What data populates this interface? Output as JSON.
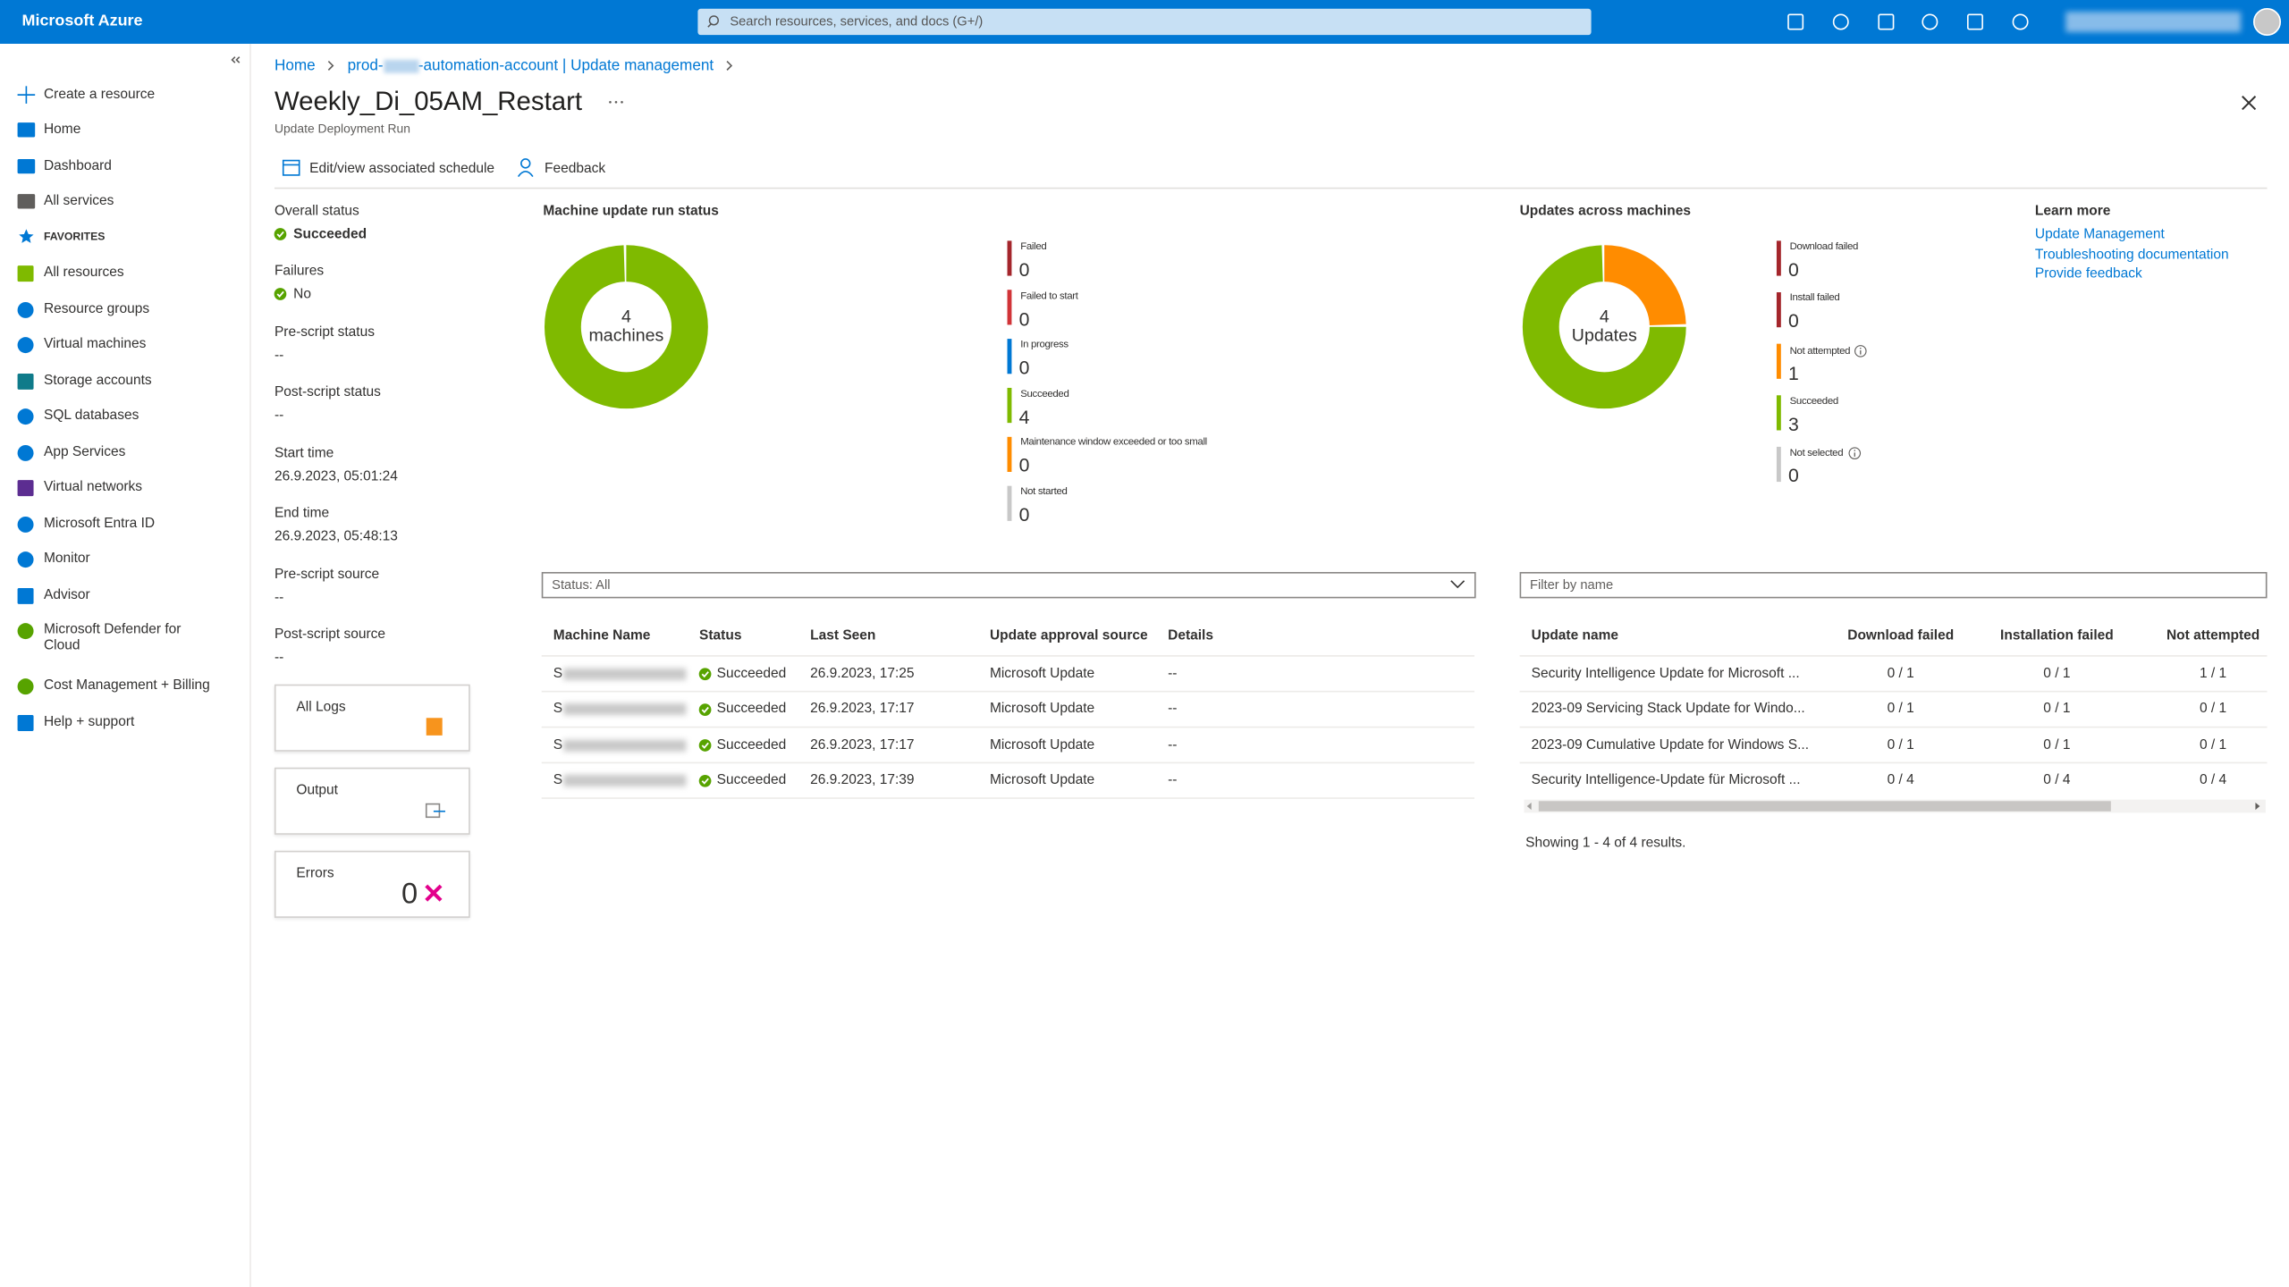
{
  "topbar": {
    "brand": "Microsoft Azure",
    "search": "Search resources, services, and docs (G+/)"
  },
  "sidebar": {
    "items": [
      "Create a resource",
      "Home",
      "Dashboard",
      "All services"
    ],
    "favorites_label": "FAVORITES",
    "favorites": [
      "All resources",
      "Resource groups",
      "Virtual machines",
      "Storage accounts",
      "SQL databases",
      "App Services",
      "Virtual networks",
      "Microsoft Entra ID",
      "Monitor",
      "Advisor",
      "Microsoft Defender for Cloud",
      "Cost Management + Billing",
      "Help + support"
    ]
  },
  "breadcrumb": [
    "Home",
    "prod-",
    "-automation-account | Update management"
  ],
  "header": {
    "title": "Weekly_Di_05AM_Restart",
    "subtitle": "Update Deployment Run"
  },
  "toolbar": [
    "Edit/view associated schedule",
    "Feedback"
  ],
  "details": [
    {
      "label": "Overall status",
      "value": "Succeeded"
    },
    {
      "label": "Failures",
      "value": "No"
    },
    {
      "label": "Pre-script status",
      "value": "--"
    },
    {
      "label": "Post-script status",
      "value": "--"
    },
    {
      "label": "Start time",
      "value": "26.9.2023, 05:01:24"
    },
    {
      "label": "End time",
      "value": "26.9.2023, 05:48:13"
    },
    {
      "label": "Pre-script source",
      "value": "--"
    },
    {
      "label": "Post-script source",
      "value": "--"
    }
  ],
  "tiles": [
    {
      "label": "All Logs"
    },
    {
      "label": "Output"
    },
    {
      "label": "Errors",
      "value": 0
    }
  ],
  "machine_status": {
    "title": "Machine update run status",
    "total": 4,
    "unit": "machines",
    "legend": [
      {
        "name": "Failed",
        "value": 0,
        "color": "#a4262c"
      },
      {
        "name": "Failed to start",
        "value": 0,
        "color": "#d13438"
      },
      {
        "name": "In progress",
        "value": 0,
        "color": "#0078d4"
      },
      {
        "name": "Succeeded",
        "value": 4,
        "color": "#7fba00"
      },
      {
        "name": "Maintenance window exceeded or too small",
        "value": 0,
        "color": "#ff8c00"
      },
      {
        "name": "Not started",
        "value": 0,
        "color": "#c8c8c8"
      }
    ]
  },
  "updates_status": {
    "title": "Updates across machines",
    "total": 4,
    "unit": "Updates",
    "legend": [
      {
        "name": "Download failed",
        "value": 0,
        "color": "#a4262c"
      },
      {
        "name": "Install failed",
        "value": 0,
        "color": "#a4262c"
      },
      {
        "name": "Not attempted",
        "value": 1,
        "color": "#ff8c00",
        "info": true
      },
      {
        "name": "Succeeded",
        "value": 3,
        "color": "#7fba00"
      },
      {
        "name": "Not selected",
        "value": 0,
        "color": "#c8c8c8",
        "info": true
      }
    ]
  },
  "learn_more": {
    "title": "Learn more",
    "links": [
      "Update Management",
      "Troubleshooting documentation",
      "Provide feedback"
    ]
  },
  "machines_table": {
    "filter": "Status: All",
    "columns": [
      "Machine Name",
      "Status",
      "Last Seen",
      "Update approval source",
      "Details"
    ],
    "rows": [
      [
        "S",
        "Succeeded",
        "26.9.2023, 17:25",
        "Microsoft Update",
        "--"
      ],
      [
        "S",
        "Succeeded",
        "26.9.2023, 17:17",
        "Microsoft Update",
        "--"
      ],
      [
        "S",
        "Succeeded",
        "26.9.2023, 17:17",
        "Microsoft Update",
        "--"
      ],
      [
        "S",
        "Succeeded",
        "26.9.2023, 17:39",
        "Microsoft Update",
        "--"
      ]
    ]
  },
  "updates_table": {
    "filter": "Filter by name",
    "columns": [
      "Update name",
      "Download failed",
      "Installation failed",
      "Not attempted"
    ],
    "rows": [
      [
        "Security Intelligence Update for Microsoft ...",
        "0 / 1",
        "0 / 1",
        "1 / 1"
      ],
      [
        "2023-09 Servicing Stack Update for Windo...",
        "0 / 1",
        "0 / 1",
        "0 / 1"
      ],
      [
        "2023-09 Cumulative Update for Windows S...",
        "0 / 1",
        "0 / 1",
        "0 / 1"
      ],
      [
        "Security Intelligence-Update für Microsoft ...",
        "0 / 4",
        "0 / 4",
        "0 / 4"
      ]
    ],
    "footer": "Showing 1 - 4 of 4 results."
  }
}
